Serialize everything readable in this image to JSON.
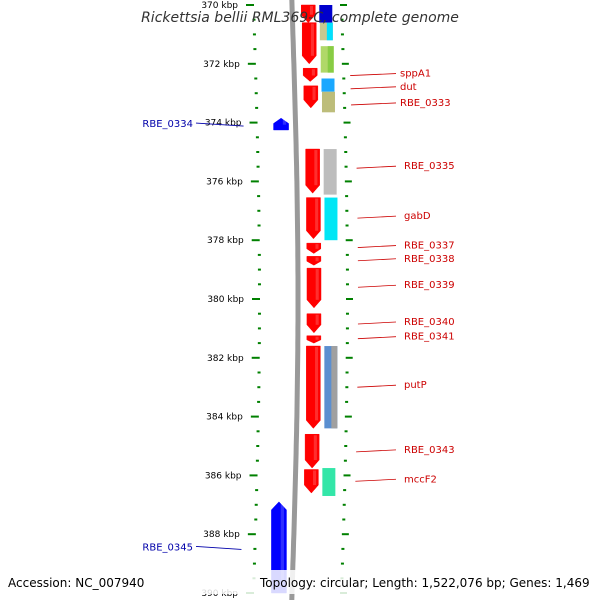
{
  "title": "Rickettsia bellii RML369-C, complete genome",
  "footer": {
    "accession": "Accession: NC_007940",
    "summary": "Topology: circular; Length: 1,522,076 bp; Genes: 1,469"
  },
  "colors": {
    "forward_strand": "#ff0000",
    "reverse_strand": "#0000ff",
    "backbone": "#999999",
    "tick_marks": "#008000",
    "forward_label": "#cc0000",
    "reverse_label": "#0000aa"
  },
  "axis": {
    "unit": "kbp",
    "range_kbp": [
      370,
      390
    ],
    "major_tick_labels": [
      "370 kbp",
      "372 kbp",
      "374 kbp",
      "376 kbp",
      "378 kbp",
      "380 kbp",
      "382 kbp",
      "384 kbp",
      "386 kbp",
      "388 kbp",
      "390 kbp"
    ]
  },
  "forward_genes": [
    {
      "start": 370.0,
      "end": 370.6
    },
    {
      "start": 370.6,
      "end": 372.0
    },
    {
      "start": 372.15,
      "end": 372.6
    },
    {
      "start": 372.75,
      "end": 373.5
    },
    {
      "start": 374.9,
      "end": 376.4
    },
    {
      "start": 376.55,
      "end": 377.95
    },
    {
      "start": 378.1,
      "end": 378.45
    },
    {
      "start": 378.55,
      "end": 378.85
    },
    {
      "start": 378.95,
      "end": 380.3
    },
    {
      "start": 380.5,
      "end": 381.15
    },
    {
      "start": 381.25,
      "end": 381.5
    },
    {
      "start": 381.6,
      "end": 384.4
    },
    {
      "start": 384.6,
      "end": 385.75
    },
    {
      "start": 385.8,
      "end": 386.6
    }
  ],
  "reverse_genes": [
    {
      "start": 373.85,
      "end": 374.25
    },
    {
      "start": 386.9,
      "end": 390.0
    }
  ],
  "feature_tracks": [
    {
      "start": 370.0,
      "end": 370.6,
      "color": "#0000cc"
    },
    {
      "start": 370.6,
      "end": 371.2,
      "color": "#c8c890"
    },
    {
      "start": 370.6,
      "end": 371.2,
      "color": "#00e0ff",
      "offset": 1
    },
    {
      "start": 371.4,
      "end": 372.3,
      "color": "#b0d868"
    },
    {
      "start": 371.4,
      "end": 372.3,
      "color": "#88cc44",
      "offset": 1
    },
    {
      "start": 372.5,
      "end": 372.95,
      "color": "#1aa8ff"
    },
    {
      "start": 372.95,
      "end": 373.65,
      "color": "#bdbd7a"
    },
    {
      "start": 374.9,
      "end": 376.45,
      "color": "#bdbdbd"
    },
    {
      "start": 376.55,
      "end": 378.0,
      "color": "#00e6f5"
    },
    {
      "start": 381.6,
      "end": 384.4,
      "color": "#5b8fd0"
    },
    {
      "start": 381.6,
      "end": 384.4,
      "color": "#a0a0a0",
      "offset": 1
    },
    {
      "start": 385.75,
      "end": 386.7,
      "color": "#33e6a8"
    }
  ],
  "labels": [
    {
      "text": "sppA1",
      "side": "right",
      "pos": 372.4
    },
    {
      "text": "dut",
      "side": "right",
      "pos": 372.85
    },
    {
      "text": "RBE_0333",
      "side": "right",
      "pos": 373.4
    },
    {
      "text": "RBE_0334",
      "side": "left",
      "pos": 374.05
    },
    {
      "text": "RBE_0335",
      "side": "right",
      "pos": 375.55
    },
    {
      "text": "gabD",
      "side": "right",
      "pos": 377.25
    },
    {
      "text": "RBE_0337",
      "side": "right",
      "pos": 378.25
    },
    {
      "text": "RBE_0338",
      "side": "right",
      "pos": 378.7
    },
    {
      "text": "RBE_0339",
      "side": "right",
      "pos": 379.6
    },
    {
      "text": "RBE_0340",
      "side": "right",
      "pos": 380.85
    },
    {
      "text": "RBE_0341",
      "side": "right",
      "pos": 381.35
    },
    {
      "text": "putP",
      "side": "right",
      "pos": 383.0
    },
    {
      "text": "RBE_0343",
      "side": "right",
      "pos": 385.2
    },
    {
      "text": "mccF2",
      "side": "right",
      "pos": 386.2
    },
    {
      "text": "RBE_0345",
      "side": "left",
      "pos": 388.45
    }
  ]
}
